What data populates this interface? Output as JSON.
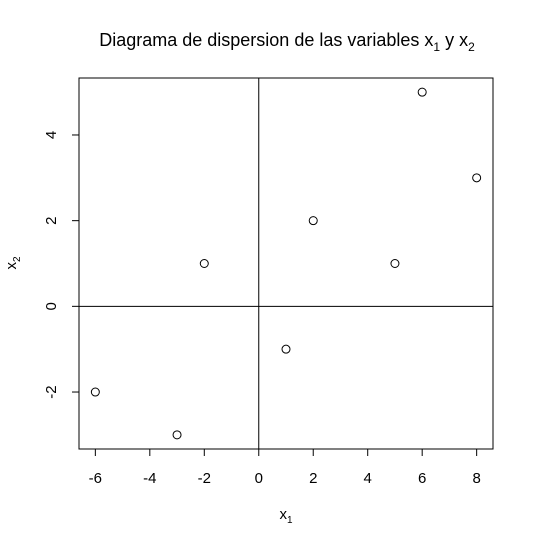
{
  "chart_data": {
    "type": "scatter",
    "title": {
      "prefix": "Diagrama de dispersion de las variables x",
      "sub1": "1",
      "middle": " y x",
      "sub2": "2"
    },
    "xlabel": {
      "base": "x",
      "sub": "1"
    },
    "ylabel": {
      "base": "x",
      "sub": "2"
    },
    "xlim": [
      -6.6,
      8.6
    ],
    "ylim": [
      -3.33,
      5.33
    ],
    "xticks": [
      {
        "value": -6,
        "label": "-6"
      },
      {
        "value": -4,
        "label": "-4"
      },
      {
        "value": -2,
        "label": "-2"
      },
      {
        "value": 0,
        "label": "0"
      },
      {
        "value": 2,
        "label": "2"
      },
      {
        "value": 4,
        "label": "4"
      },
      {
        "value": 6,
        "label": "6"
      },
      {
        "value": 8,
        "label": "8"
      }
    ],
    "yticks": [
      {
        "value": -2,
        "label": "-2"
      },
      {
        "value": 0,
        "label": "0"
      },
      {
        "value": 2,
        "label": "2"
      },
      {
        "value": 4,
        "label": "4"
      }
    ],
    "reference_lines": {
      "x": 0,
      "y": 0
    },
    "points": [
      {
        "x": -6,
        "y": -2
      },
      {
        "x": -3,
        "y": -3
      },
      {
        "x": -2,
        "y": 1
      },
      {
        "x": 1,
        "y": -1
      },
      {
        "x": 2,
        "y": 2
      },
      {
        "x": 5,
        "y": 1
      },
      {
        "x": 6,
        "y": 5
      },
      {
        "x": 8,
        "y": 3
      }
    ],
    "marker": "open-circle",
    "grid": false,
    "colors": {
      "ink": "#000000",
      "background": "#ffffff"
    }
  }
}
